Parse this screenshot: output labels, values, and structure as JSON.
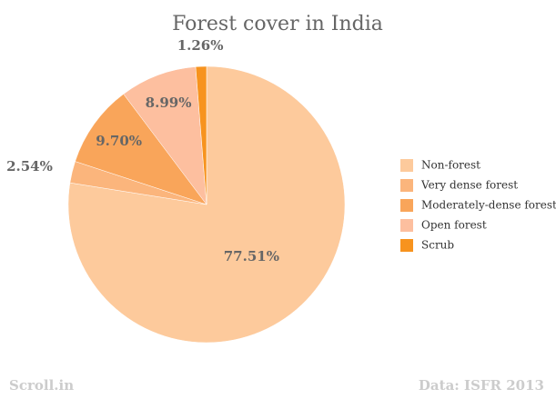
{
  "chart_data": {
    "type": "pie",
    "title": "Forest cover in India",
    "categories": [
      "Non-forest",
      "Very dense forest",
      "Moderately-dense forest",
      "Open forest",
      "Scrub"
    ],
    "values": [
      77.51,
      2.54,
      9.7,
      8.99,
      1.26
    ],
    "value_labels": [
      "77.51%",
      "2.54%",
      "9.70%",
      "8.99%",
      "1.26%"
    ],
    "colors": [
      "#fdca9c",
      "#fbb57c",
      "#f9a55a",
      "#fdbf9f",
      "#f7931e"
    ],
    "legend": "right",
    "source": "Data: ISFR 2013",
    "credit": "Scroll.in"
  }
}
